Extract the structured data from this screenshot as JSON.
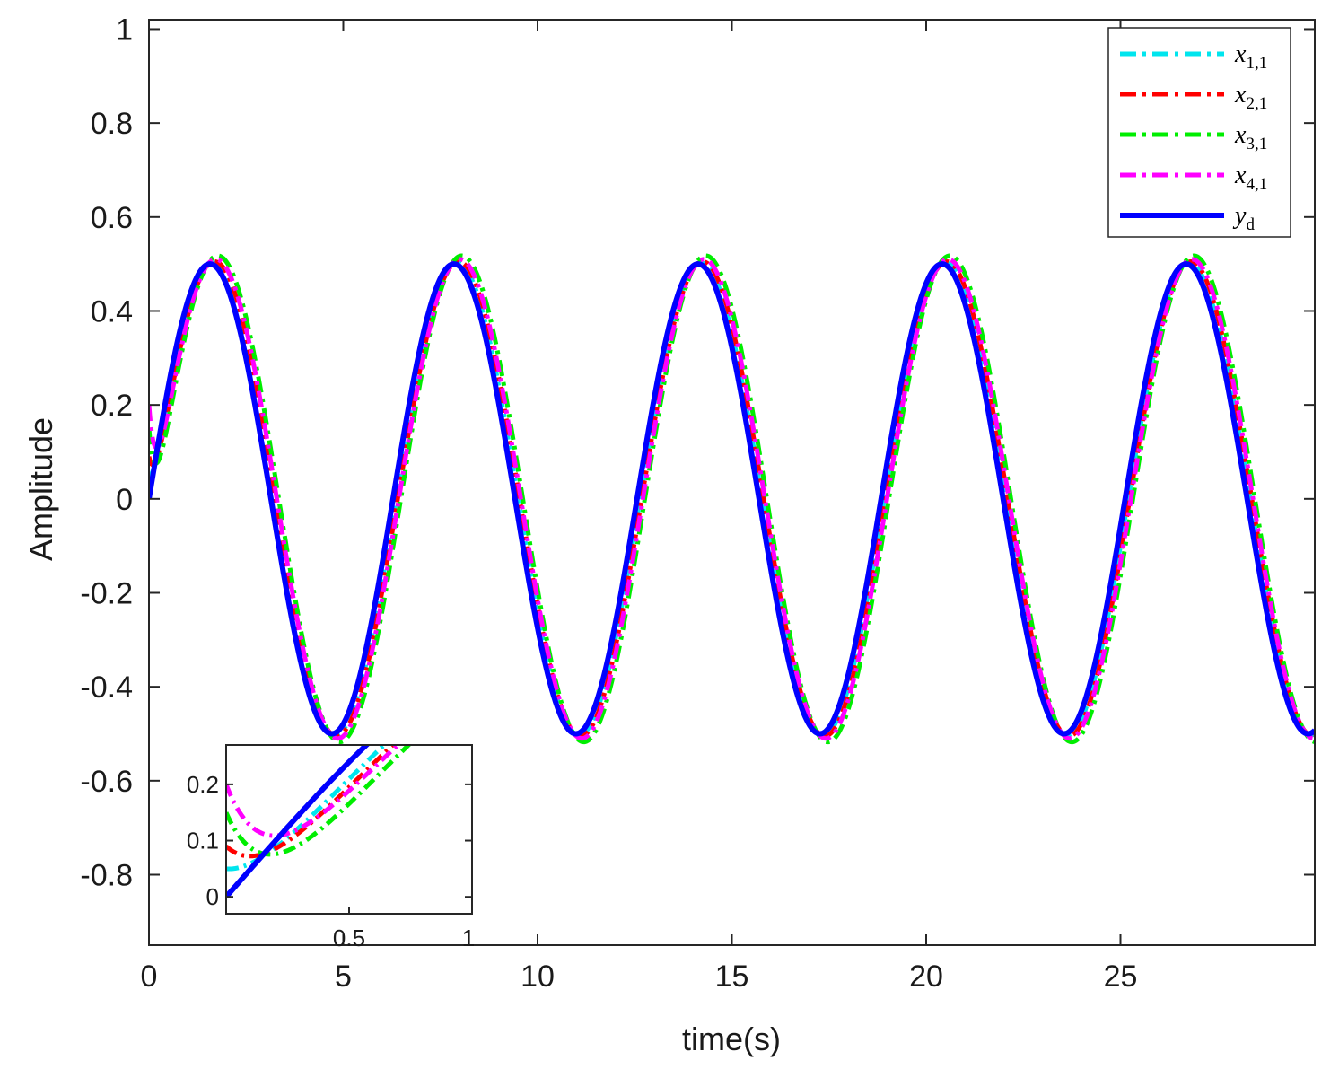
{
  "chart_data": {
    "type": "line",
    "title": "",
    "xlabel": "time(s)",
    "ylabel": "Amplitude",
    "xlim": [
      0,
      30
    ],
    "ylim": [
      -0.95,
      1.02
    ],
    "xticks": [
      0,
      5,
      10,
      15,
      20,
      25
    ],
    "xtick_labels": [
      "0",
      "5",
      "10",
      "15",
      "20",
      "25"
    ],
    "yticks": [
      -0.8,
      -0.6,
      -0.4,
      -0.2,
      0,
      0.2,
      0.4,
      0.6,
      0.8,
      1
    ],
    "ytick_labels": [
      "-0.8",
      "-0.6",
      "-0.4",
      "-0.2",
      "0",
      "0.2",
      "0.4",
      "0.6",
      "0.8",
      "1"
    ],
    "grid": false,
    "legend_position": "top-right",
    "reference": {
      "amplitude": 0.5,
      "period": 6.28
    },
    "series": [
      {
        "name": "x",
        "sub": "1,1",
        "color": "#00e5ee",
        "style": "dashdot",
        "initial": 0.05,
        "lag": 0.08,
        "gain": 1.005
      },
      {
        "name": "x",
        "sub": "2,1",
        "color": "#ff0000",
        "style": "dashdot",
        "initial": 0.09,
        "lag": 0.12,
        "gain": 1.01
      },
      {
        "name": "x",
        "sub": "3,1",
        "color": "#00ee00",
        "style": "dashdot",
        "initial": 0.15,
        "lag": 0.2,
        "gain": 1.035
      },
      {
        "name": "x",
        "sub": "4,1",
        "color": "#ff00ff",
        "style": "dashdot",
        "initial": 0.2,
        "lag": 0.15,
        "gain": 1.02
      },
      {
        "name": "y",
        "sub": "d",
        "color": "#0000ff",
        "style": "solid",
        "initial": 0,
        "lag": 0,
        "gain": 1
      }
    ],
    "inset": {
      "xlim": [
        0,
        1
      ],
      "ylim": [
        -0.03,
        0.27
      ],
      "xticks": [
        0.5,
        1
      ],
      "xtick_labels": [
        "0.5",
        "1"
      ],
      "yticks": [
        0,
        0.1,
        0.2
      ],
      "ytick_labels": [
        "0",
        "0.1",
        "0.2"
      ]
    }
  }
}
